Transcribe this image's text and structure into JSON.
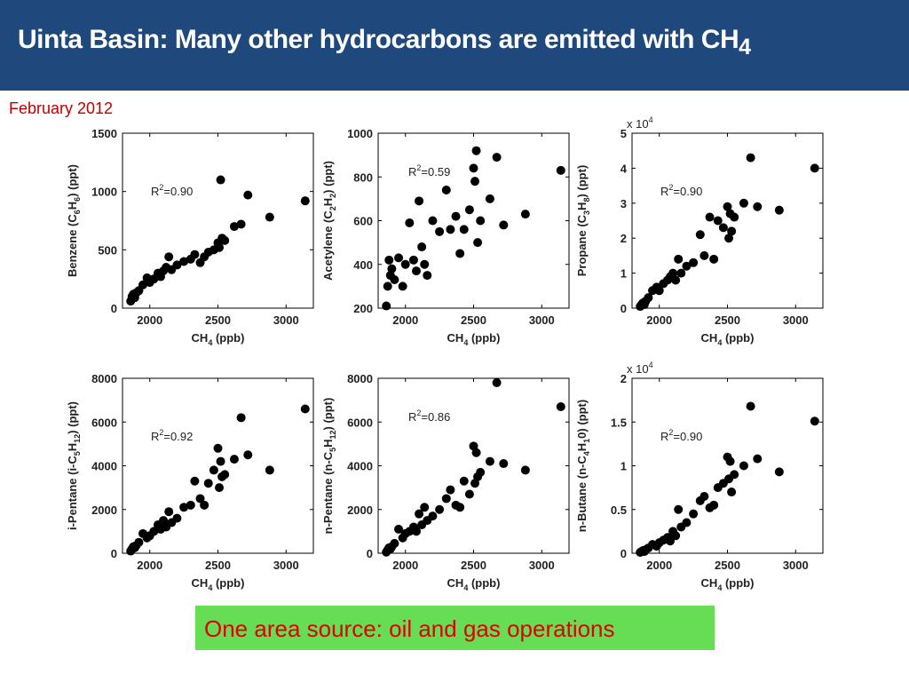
{
  "title": {
    "text": "Uinta Basin: Many other hydrocarbons are emitted with CH",
    "subscript": "4"
  },
  "subtitle": "February 2012",
  "footer": "One area source: oil and gas operations",
  "chart_data": [
    {
      "type": "scatter",
      "ylabel": [
        "Benzene (C",
        "6",
        "H",
        "6",
        ") (ppt)"
      ],
      "xlabel": [
        "CH",
        "4",
        " (ppb)"
      ],
      "annotation": [
        "R",
        "2",
        "=0.90"
      ],
      "xlim": [
        1800,
        3200
      ],
      "xticks": [
        2000,
        2500,
        3000
      ],
      "ylim": [
        0,
        1500
      ],
      "yticks": [
        0,
        500,
        1000,
        1500
      ],
      "color": "#000000",
      "grid": false,
      "x": [
        1860,
        1870,
        1880,
        1890,
        1900,
        1920,
        1950,
        1980,
        2000,
        2030,
        2060,
        2080,
        2100,
        2120,
        2140,
        2160,
        2200,
        2250,
        2300,
        2330,
        2370,
        2400,
        2430,
        2470,
        2500,
        2510,
        2520,
        2530,
        2550,
        2620,
        2670,
        2720,
        2880,
        3140
      ],
      "values": [
        60,
        100,
        120,
        90,
        130,
        150,
        200,
        260,
        220,
        250,
        300,
        270,
        320,
        350,
        440,
        330,
        370,
        400,
        420,
        460,
        390,
        440,
        480,
        500,
        560,
        520,
        1100,
        600,
        580,
        700,
        720,
        970,
        780,
        920
      ]
    },
    {
      "type": "scatter",
      "ylabel": [
        "Acetylene (C",
        "2",
        "H",
        "2",
        ") (ppt)"
      ],
      "xlabel": [
        "CH",
        "4",
        " (ppb)"
      ],
      "annotation": [
        "R",
        "2",
        "=0.59"
      ],
      "xlim": [
        1800,
        3200
      ],
      "xticks": [
        2000,
        2500,
        3000
      ],
      "ylim": [
        200,
        1000
      ],
      "yticks": [
        200,
        400,
        600,
        800,
        1000
      ],
      "color": "#000000",
      "grid": false,
      "x": [
        1860,
        1870,
        1880,
        1890,
        1900,
        1920,
        1950,
        1980,
        2000,
        2030,
        2060,
        2080,
        2100,
        2120,
        2140,
        2160,
        2200,
        2250,
        2300,
        2330,
        2370,
        2400,
        2430,
        2470,
        2500,
        2510,
        2520,
        2530,
        2550,
        2620,
        2670,
        2720,
        2880,
        3140
      ],
      "values": [
        210,
        300,
        420,
        350,
        380,
        330,
        430,
        300,
        400,
        590,
        420,
        370,
        690,
        480,
        400,
        350,
        600,
        550,
        740,
        560,
        620,
        450,
        560,
        650,
        840,
        780,
        920,
        500,
        600,
        700,
        890,
        580,
        630,
        830
      ]
    },
    {
      "type": "scatter",
      "ylabel": [
        "Propane (C",
        "3",
        "H",
        "8",
        ") (ppt)"
      ],
      "xlabel": [
        "CH",
        "4",
        " (ppb)"
      ],
      "annotation": [
        "R",
        "2",
        "=0.90"
      ],
      "multiplier": [
        "x 10",
        "4"
      ],
      "xlim": [
        1800,
        3200
      ],
      "xticks": [
        2000,
        2500,
        3000
      ],
      "ylim": [
        0,
        5
      ],
      "yticks": [
        0,
        1,
        2,
        3,
        4,
        5
      ],
      "color": "#000000",
      "grid": false,
      "x": [
        1860,
        1870,
        1880,
        1890,
        1900,
        1920,
        1950,
        1980,
        2000,
        2030,
        2060,
        2080,
        2100,
        2120,
        2140,
        2160,
        2200,
        2250,
        2300,
        2330,
        2370,
        2400,
        2430,
        2470,
        2500,
        2510,
        2520,
        2530,
        2550,
        2620,
        2670,
        2720,
        2880,
        3140
      ],
      "values": [
        0.05,
        0.1,
        0.15,
        0.1,
        0.2,
        0.3,
        0.5,
        0.6,
        0.5,
        0.7,
        0.8,
        0.9,
        1.0,
        0.8,
        1.4,
        1.0,
        1.2,
        1.3,
        2.1,
        1.5,
        2.6,
        1.4,
        2.5,
        2.3,
        2.9,
        2.0,
        2.7,
        2.2,
        2.6,
        3.0,
        4.3,
        2.9,
        2.8,
        4.0
      ]
    },
    {
      "type": "scatter",
      "ylabel": [
        "i-Pentane (i-C",
        "5",
        "H",
        "12",
        ") (ppt)"
      ],
      "xlabel": [
        "CH",
        "4",
        " (ppb)"
      ],
      "annotation": [
        "R",
        "2",
        "=0.92"
      ],
      "xlim": [
        1800,
        3200
      ],
      "xticks": [
        2000,
        2500,
        3000
      ],
      "ylim": [
        0,
        8000
      ],
      "yticks": [
        0,
        2000,
        4000,
        6000,
        8000
      ],
      "color": "#000000",
      "grid": false,
      "x": [
        1860,
        1870,
        1880,
        1890,
        1900,
        1920,
        1950,
        1980,
        2000,
        2030,
        2060,
        2080,
        2100,
        2120,
        2140,
        2160,
        2200,
        2250,
        2300,
        2330,
        2370,
        2400,
        2430,
        2470,
        2500,
        2510,
        2520,
        2530,
        2550,
        2620,
        2670,
        2720,
        2880,
        3140
      ],
      "values": [
        100,
        200,
        300,
        250,
        350,
        500,
        900,
        700,
        800,
        1000,
        1300,
        1100,
        1500,
        1200,
        1900,
        1400,
        1600,
        2100,
        2200,
        3300,
        2500,
        2200,
        3200,
        3800,
        4800,
        3000,
        4200,
        3500,
        3600,
        4300,
        6200,
        4500,
        3800,
        6600
      ]
    },
    {
      "type": "scatter",
      "ylabel": [
        "n-Pentane (n-C",
        "5",
        "H",
        "12",
        ") (ppt)"
      ],
      "xlabel": [
        "CH",
        "4",
        " (ppb)"
      ],
      "annotation": [
        "R",
        "2",
        "=0.86"
      ],
      "xlim": [
        1800,
        3200
      ],
      "xticks": [
        2000,
        2500,
        3000
      ],
      "ylim": [
        0,
        8000
      ],
      "yticks": [
        0,
        2000,
        4000,
        6000,
        8000
      ],
      "color": "#000000",
      "grid": false,
      "x": [
        1860,
        1870,
        1880,
        1890,
        1900,
        1920,
        1950,
        1980,
        2000,
        2030,
        2060,
        2080,
        2100,
        2120,
        2140,
        2160,
        2200,
        2250,
        2300,
        2330,
        2370,
        2400,
        2430,
        2470,
        2500,
        2510,
        2520,
        2530,
        2550,
        2620,
        2670,
        2720,
        2880,
        3140
      ],
      "values": [
        50,
        150,
        250,
        200,
        300,
        450,
        1100,
        700,
        900,
        1000,
        1200,
        1000,
        1800,
        1300,
        2100,
        1500,
        1700,
        2000,
        2500,
        2900,
        2200,
        2100,
        3300,
        2700,
        4900,
        3200,
        4600,
        3500,
        3700,
        4200,
        7800,
        4100,
        3800,
        6700
      ]
    },
    {
      "type": "scatter",
      "ylabel": [
        "n-Butane (n-C",
        "4",
        "H",
        "1",
        "0) (ppt)"
      ],
      "xlabel": [
        "CH",
        "4",
        " (ppb)"
      ],
      "annotation": [
        "R",
        "2",
        "=0.90"
      ],
      "multiplier": [
        "x 10",
        "4"
      ],
      "xlim": [
        1800,
        3200
      ],
      "xticks": [
        2000,
        2500,
        3000
      ],
      "ylim": [
        0,
        2
      ],
      "yticks": [
        0,
        0.5,
        1,
        1.5,
        2
      ],
      "color": "#000000",
      "grid": false,
      "x": [
        1860,
        1870,
        1880,
        1890,
        1900,
        1920,
        1950,
        1980,
        2000,
        2030,
        2060,
        2080,
        2100,
        2120,
        2140,
        2160,
        2200,
        2250,
        2300,
        2330,
        2370,
        2400,
        2430,
        2470,
        2500,
        2510,
        2520,
        2530,
        2550,
        2620,
        2670,
        2720,
        2880,
        3140
      ],
      "values": [
        0.01,
        0.02,
        0.03,
        0.02,
        0.04,
        0.06,
        0.1,
        0.08,
        0.12,
        0.15,
        0.18,
        0.14,
        0.25,
        0.2,
        0.5,
        0.3,
        0.35,
        0.45,
        0.6,
        0.65,
        0.52,
        0.55,
        0.75,
        0.8,
        1.1,
        0.85,
        1.05,
        0.7,
        0.9,
        1.0,
        1.68,
        1.08,
        0.93,
        1.51
      ]
    }
  ]
}
